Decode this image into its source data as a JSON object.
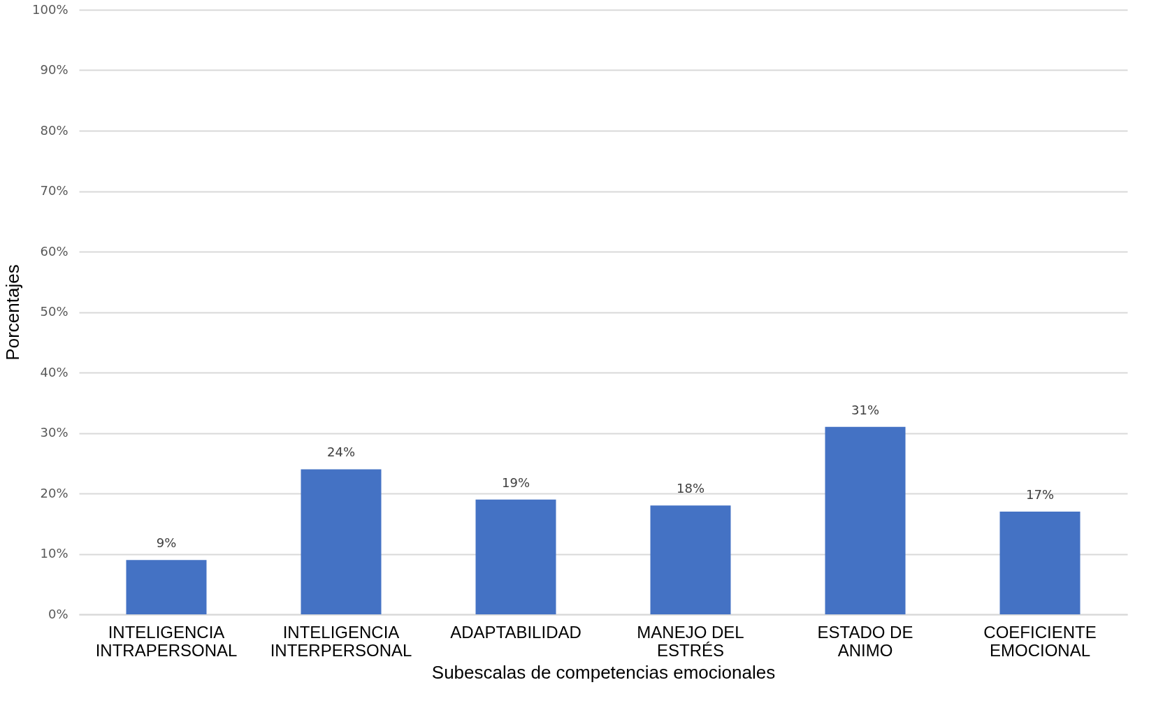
{
  "chart_data": {
    "type": "bar",
    "xlabel": "Subescalas de competencias emocionales",
    "ylabel": "Porcentajes",
    "categories": [
      "INTELIGENCIA INTRAPERSONAL",
      "INTELIGENCIA INTERPERSONAL",
      "ADAPTABILIDAD",
      "MANEJO DEL ESTRÉS",
      "ESTADO DE ANIMO",
      "COEFICIENTE EMOCIONAL"
    ],
    "values": [
      9,
      24,
      19,
      18,
      31,
      17
    ],
    "value_labels": [
      "9%",
      "24%",
      "19%",
      "18%",
      "31%",
      "17%"
    ],
    "color": "#4472c4",
    "ylim": [
      0,
      100
    ],
    "yticks": [
      {
        "value": 0,
        "label": "0%"
      },
      {
        "value": 10,
        "label": "10%"
      },
      {
        "value": 20,
        "label": "20%"
      },
      {
        "value": 30,
        "label": "30%"
      },
      {
        "value": 40,
        "label": "40%"
      },
      {
        "value": 50,
        "label": "50%"
      },
      {
        "value": 60,
        "label": "60%"
      },
      {
        "value": 70,
        "label": "70%"
      },
      {
        "value": 80,
        "label": "80%"
      },
      {
        "value": 90,
        "label": "90%"
      },
      {
        "value": 100,
        "label": "100%"
      }
    ],
    "grid": "y"
  }
}
